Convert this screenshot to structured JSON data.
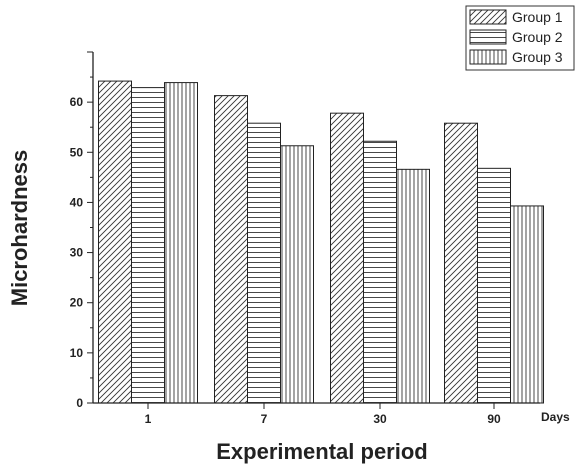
{
  "chart_data": {
    "type": "bar",
    "categories": [
      "1",
      "7",
      "30",
      "90"
    ],
    "series": [
      {
        "name": "Group 1",
        "values": [
          64.2,
          61.3,
          57.8,
          55.8
        ]
      },
      {
        "name": "Group 2",
        "values": [
          62.9,
          55.8,
          52.2,
          46.8
        ]
      },
      {
        "name": "Group 3",
        "values": [
          63.9,
          51.3,
          46.6,
          39.3
        ]
      }
    ],
    "xlabel": "Experimental period",
    "x_unit": "Days",
    "ylabel": "Microhardness",
    "ylim": [
      0,
      70
    ],
    "yticks": [
      0,
      10,
      20,
      30,
      40,
      50,
      60
    ],
    "legend": "top-right",
    "grid": false,
    "patterns": [
      "diagonal",
      "horizontal",
      "vertical"
    ]
  }
}
